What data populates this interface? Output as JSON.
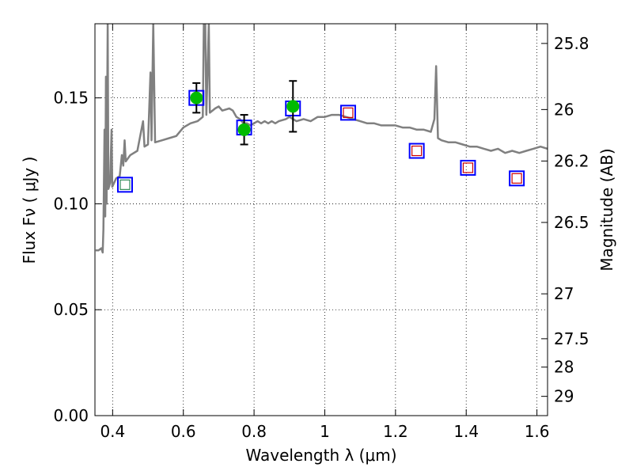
{
  "chart_data": {
    "type": "scatter",
    "xlabel": "Wavelength  λ (μm)",
    "ylabel": "Flux  Fν  ( μJy )",
    "y2label": "Magnitude (AB)",
    "xlim": [
      0.35,
      1.63
    ],
    "ylim": [
      0.0,
      0.185
    ],
    "grid": true,
    "x_ticks": [
      0.4,
      0.6,
      0.8,
      1.0,
      1.2,
      1.4,
      1.6
    ],
    "x_tick_labels": [
      "0.4",
      "0.6",
      "0.8",
      "1",
      "1.2",
      "1.4",
      "1.6"
    ],
    "y_ticks": [
      0.0,
      0.05,
      0.1,
      0.15
    ],
    "y_tick_labels": [
      "0.00",
      "0.05",
      "0.10",
      "0.15"
    ],
    "mag_ticks": [
      {
        "label": "25.8",
        "flux": 0.1757
      },
      {
        "label": "26",
        "flux": 0.1445
      },
      {
        "label": "26.2",
        "flux": 0.1202
      },
      {
        "label": "26.5",
        "flux": 0.0912
      },
      {
        "label": "27",
        "flux": 0.0575
      },
      {
        "label": "27.5",
        "flux": 0.0363
      },
      {
        "label": "28",
        "flux": 0.0229
      },
      {
        "label": "29",
        "flux": 0.0091
      }
    ],
    "series": [
      {
        "kind": "spectrum",
        "color": "#808080",
        "points": [
          [
            0.352,
            0.078
          ],
          [
            0.36,
            0.078
          ],
          [
            0.368,
            0.079
          ],
          [
            0.372,
            0.077
          ],
          [
            0.374,
            0.088
          ],
          [
            0.377,
            0.135
          ],
          [
            0.379,
            0.094
          ],
          [
            0.381,
            0.16
          ],
          [
            0.383,
            0.1
          ],
          [
            0.386,
            0.185
          ],
          [
            0.388,
            0.107
          ],
          [
            0.393,
            0.11
          ],
          [
            0.397,
            0.135
          ],
          [
            0.399,
            0.108
          ],
          [
            0.41,
            0.112
          ],
          [
            0.42,
            0.113
          ],
          [
            0.426,
            0.123
          ],
          [
            0.43,
            0.118
          ],
          [
            0.434,
            0.13
          ],
          [
            0.437,
            0.12
          ],
          [
            0.45,
            0.123
          ],
          [
            0.47,
            0.125
          ],
          [
            0.486,
            0.139
          ],
          [
            0.49,
            0.127
          ],
          [
            0.5,
            0.128
          ],
          [
            0.507,
            0.162
          ],
          [
            0.51,
            0.13
          ],
          [
            0.515,
            0.185
          ],
          [
            0.52,
            0.129
          ],
          [
            0.54,
            0.13
          ],
          [
            0.56,
            0.131
          ],
          [
            0.58,
            0.132
          ],
          [
            0.6,
            0.136
          ],
          [
            0.62,
            0.138
          ],
          [
            0.64,
            0.139
          ],
          [
            0.655,
            0.141
          ],
          [
            0.658,
            0.185
          ],
          [
            0.662,
            0.185
          ],
          [
            0.665,
            0.142
          ],
          [
            0.672,
            0.185
          ],
          [
            0.675,
            0.143
          ],
          [
            0.69,
            0.145
          ],
          [
            0.7,
            0.146
          ],
          [
            0.71,
            0.144
          ],
          [
            0.73,
            0.145
          ],
          [
            0.74,
            0.144
          ],
          [
            0.75,
            0.141
          ],
          [
            0.76,
            0.14
          ],
          [
            0.77,
            0.138
          ],
          [
            0.78,
            0.138
          ],
          [
            0.79,
            0.137
          ],
          [
            0.81,
            0.139
          ],
          [
            0.82,
            0.138
          ],
          [
            0.83,
            0.139
          ],
          [
            0.84,
            0.138
          ],
          [
            0.85,
            0.139
          ],
          [
            0.86,
            0.138
          ],
          [
            0.87,
            0.139
          ],
          [
            0.89,
            0.14
          ],
          [
            0.9,
            0.141
          ],
          [
            0.92,
            0.139
          ],
          [
            0.94,
            0.14
          ],
          [
            0.96,
            0.139
          ],
          [
            0.98,
            0.141
          ],
          [
            1.0,
            0.141
          ],
          [
            1.02,
            0.142
          ],
          [
            1.04,
            0.142
          ],
          [
            1.06,
            0.141
          ],
          [
            1.08,
            0.14
          ],
          [
            1.1,
            0.139
          ],
          [
            1.12,
            0.138
          ],
          [
            1.14,
            0.138
          ],
          [
            1.16,
            0.137
          ],
          [
            1.18,
            0.137
          ],
          [
            1.2,
            0.137
          ],
          [
            1.22,
            0.136
          ],
          [
            1.24,
            0.136
          ],
          [
            1.26,
            0.135
          ],
          [
            1.28,
            0.135
          ],
          [
            1.3,
            0.134
          ],
          [
            1.31,
            0.14
          ],
          [
            1.315,
            0.165
          ],
          [
            1.32,
            0.131
          ],
          [
            1.33,
            0.13
          ],
          [
            1.35,
            0.129
          ],
          [
            1.37,
            0.129
          ],
          [
            1.39,
            0.128
          ],
          [
            1.41,
            0.127
          ],
          [
            1.43,
            0.127
          ],
          [
            1.45,
            0.126
          ],
          [
            1.47,
            0.125
          ],
          [
            1.49,
            0.126
          ],
          [
            1.51,
            0.124
          ],
          [
            1.53,
            0.125
          ],
          [
            1.55,
            0.124
          ],
          [
            1.57,
            0.125
          ],
          [
            1.59,
            0.126
          ],
          [
            1.61,
            0.127
          ],
          [
            1.63,
            0.126
          ]
        ]
      },
      {
        "kind": "model_squares",
        "color": "#0000ff",
        "points": [
          [
            0.435,
            0.109
          ],
          [
            0.637,
            0.15
          ],
          [
            0.772,
            0.136
          ],
          [
            0.91,
            0.145
          ],
          [
            1.066,
            0.143
          ],
          [
            1.26,
            0.125
          ],
          [
            1.405,
            0.117
          ],
          [
            1.543,
            0.112
          ]
        ]
      },
      {
        "kind": "detections",
        "color": "#00bb00",
        "points": [
          [
            0.637,
            0.15,
            0.007
          ],
          [
            0.772,
            0.135,
            0.007
          ],
          [
            0.91,
            0.146,
            0.012
          ]
        ]
      },
      {
        "kind": "inner_squares",
        "points": [
          {
            "x": 0.435,
            "y": 0.109,
            "color": "#2e8b57"
          },
          {
            "x": 1.066,
            "y": 0.143,
            "color": "#cc0000"
          },
          {
            "x": 1.26,
            "y": 0.125,
            "color": "#cc0000"
          },
          {
            "x": 1.405,
            "y": 0.117,
            "color": "#cc0000"
          },
          {
            "x": 1.543,
            "y": 0.112,
            "color": "#cc0000"
          }
        ]
      }
    ]
  }
}
